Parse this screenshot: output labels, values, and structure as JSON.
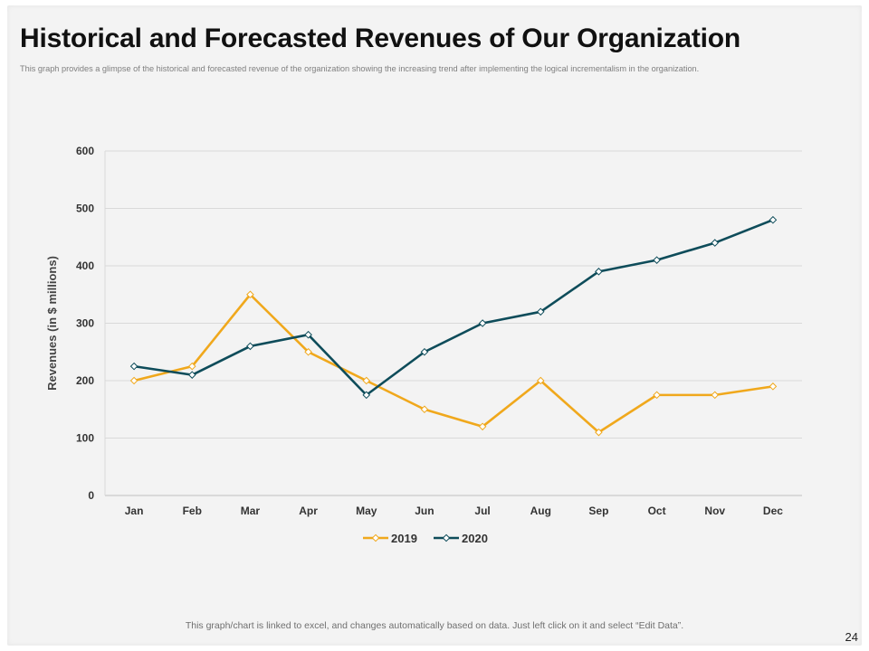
{
  "slide": {
    "title": "Historical and Forecasted Revenues of Our Organization",
    "subtitle": "This graph provides a glimpse of the historical and forecasted revenue of the organization showing the increasing trend after implementing the logical incrementalism in the organization.",
    "footer_note": "This graph/chart is linked to excel,  and changes automatically based on data. Just left click on it and select “Edit Data”.",
    "page_number": "24"
  },
  "chart_data": {
    "type": "line",
    "title": "",
    "xlabel": "",
    "ylabel": "Revenues (in $ millions)",
    "categories": [
      "Jan",
      "Feb",
      "Mar",
      "Apr",
      "May",
      "Jun",
      "Jul",
      "Aug",
      "Sep",
      "Oct",
      "Nov",
      "Dec"
    ],
    "ylim": [
      0,
      600
    ],
    "yticks": [
      0,
      100,
      200,
      300,
      400,
      500,
      600
    ],
    "grid": true,
    "legend_position": "bottom",
    "series": [
      {
        "name": "2019",
        "color": "#f0a81c",
        "values": [
          200,
          225,
          350,
          250,
          200,
          150,
          120,
          200,
          110,
          175,
          175,
          190
        ]
      },
      {
        "name": "2020",
        "color": "#0e4c5a",
        "values": [
          225,
          210,
          260,
          280,
          175,
          250,
          300,
          320,
          390,
          410,
          440,
          480
        ]
      }
    ]
  }
}
